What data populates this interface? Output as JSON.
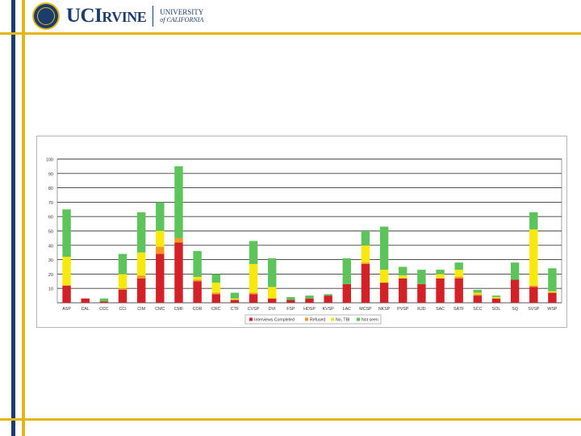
{
  "header": {
    "brand_uci": "UCI",
    "brand_irvine": "RVINE",
    "brand_uc_line1": "UNIVERSITY",
    "brand_uc_line2": "of CALIFORNIA",
    "colors": {
      "navy": "#1b3d6d",
      "gold": "#e3b713"
    }
  },
  "chart_data": {
    "type": "bar",
    "stacked": true,
    "ylim": [
      0,
      100
    ],
    "yticks": [
      10,
      20,
      30,
      40,
      50,
      60,
      70,
      80,
      90,
      100
    ],
    "grid": true,
    "legend_position": "bottom",
    "categories": [
      "ASP",
      "CAL",
      "CCC",
      "CCI",
      "CIM",
      "CMC",
      "CMF",
      "COR",
      "CRC",
      "CTF",
      "CVSP",
      "DVI",
      "FSP",
      "HDSP",
      "KVSP",
      "LAC",
      "MCSP",
      "NKSP",
      "PVSP",
      "RJD",
      "SAC",
      "SATF",
      "SCC",
      "SOL",
      "SQ",
      "SVSP",
      "WSP"
    ],
    "series": [
      {
        "name": "Interviews Completed",
        "color": "#d42027",
        "values": [
          12,
          3,
          1,
          9,
          17,
          34,
          42,
          15,
          6,
          2,
          6,
          3,
          2,
          3,
          5,
          13,
          27,
          14,
          17,
          13,
          17,
          17,
          5,
          3,
          16,
          11,
          7
        ]
      },
      {
        "name": "Refused",
        "color": "#f39a1e",
        "values": [
          0,
          0,
          0,
          1,
          2,
          5,
          3,
          1,
          1,
          0,
          1,
          0,
          0,
          0,
          0,
          0,
          1,
          0,
          0,
          0,
          0,
          1,
          1,
          0,
          0,
          1,
          0
        ]
      },
      {
        "name": "No, TBI",
        "color": "#f7e90c",
        "values": [
          20,
          0,
          0,
          10,
          16,
          11,
          0,
          2,
          7,
          1,
          20,
          8,
          0,
          0,
          0,
          0,
          12,
          9,
          2,
          0,
          3,
          5,
          1,
          1,
          0,
          39,
          1
        ]
      },
      {
        "name": "Not seen",
        "color": "#5cc45a",
        "values": [
          33,
          0,
          2,
          14,
          28,
          20,
          50,
          18,
          6,
          4,
          16,
          20,
          2,
          2,
          1,
          18,
          10,
          30,
          6,
          10,
          3,
          5,
          2,
          1,
          12,
          12,
          16
        ]
      }
    ]
  }
}
